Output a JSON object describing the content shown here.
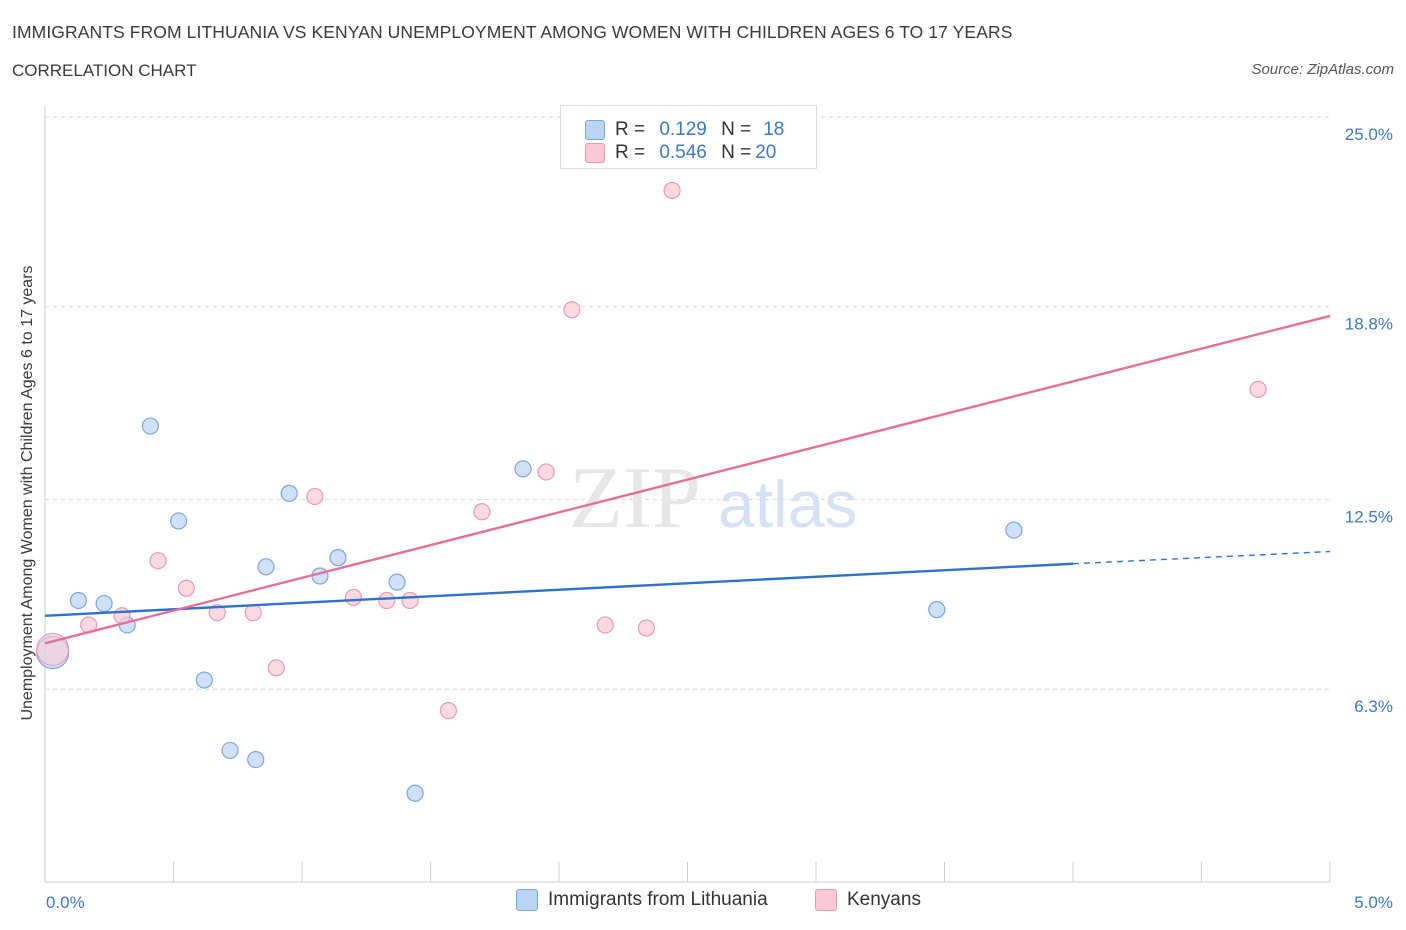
{
  "header": {
    "title": "IMMIGRANTS FROM LITHUANIA VS KENYAN UNEMPLOYMENT AMONG WOMEN WITH CHILDREN AGES 6 TO 17 YEARS",
    "subtitle": "CORRELATION CHART",
    "source": "Source: ZipAtlas.com"
  },
  "legend_top": {
    "rows": [
      {
        "r_label": "R =",
        "r_value": "0.129",
        "n_label": "N =",
        "n_value": "18"
      },
      {
        "r_label": "R =",
        "r_value": "0.546",
        "n_label": "N =",
        "n_value": "20"
      }
    ]
  },
  "legend_bottom": {
    "items": [
      "Immigrants from Lithuania",
      "Kenyans"
    ]
  },
  "colors": {
    "blue_fill": "#bcd4f4",
    "blue_stroke": "#7aa6e0",
    "blue_line": "#2f72c9",
    "pink_fill": "#f9c9d6",
    "pink_stroke": "#e99ab2",
    "pink_line": "#e46f98",
    "axis_text": "#3a78c8",
    "grid": "#dcdcdc"
  },
  "chart_data": {
    "type": "scatter",
    "title": "IMMIGRANTS FROM LITHUANIA VS KENYAN UNEMPLOYMENT AMONG WOMEN WITH CHILDREN AGES 6 TO 17 YEARS",
    "xlabel": "",
    "ylabel": "Unemployment Among Women with Children Ages 6 to 17 years",
    "xlim": [
      0,
      5
    ],
    "ylim": [
      0,
      25
    ],
    "x_tick_labels": [
      {
        "value": 0,
        "label": "0.0%"
      },
      {
        "value": 5,
        "label": "5.0%"
      }
    ],
    "y_tick_labels": [
      {
        "value": 6.3,
        "label": "6.3%"
      },
      {
        "value": 12.5,
        "label": "12.5%"
      },
      {
        "value": 18.8,
        "label": "18.8%"
      },
      {
        "value": 25.0,
        "label": "25.0%"
      }
    ],
    "watermark": {
      "a": "ZIP",
      "b": "atlas"
    },
    "series": [
      {
        "name": "Immigrants from Lithuania",
        "color": "blue",
        "trend": {
          "x0": 0,
          "y0": 8.7,
          "x1": 4.0,
          "y1": 10.4,
          "dash_to_x": 5.0,
          "dash_to_y": 10.8
        },
        "points": [
          {
            "x": 0.03,
            "y": 7.5,
            "big": true
          },
          {
            "x": 0.13,
            "y": 9.2
          },
          {
            "x": 0.23,
            "y": 9.1
          },
          {
            "x": 0.32,
            "y": 8.4
          },
          {
            "x": 0.41,
            "y": 14.9
          },
          {
            "x": 0.52,
            "y": 11.8
          },
          {
            "x": 0.62,
            "y": 6.6
          },
          {
            "x": 0.72,
            "y": 4.3
          },
          {
            "x": 0.82,
            "y": 4.0
          },
          {
            "x": 0.86,
            "y": 10.3
          },
          {
            "x": 0.95,
            "y": 12.7
          },
          {
            "x": 1.07,
            "y": 10.0
          },
          {
            "x": 1.14,
            "y": 10.6
          },
          {
            "x": 1.37,
            "y": 9.8
          },
          {
            "x": 1.44,
            "y": 2.9
          },
          {
            "x": 1.86,
            "y": 13.5
          },
          {
            "x": 3.47,
            "y": 8.9
          },
          {
            "x": 3.77,
            "y": 11.5
          }
        ]
      },
      {
        "name": "Kenyans",
        "color": "pink",
        "trend": {
          "x0": 0,
          "y0": 7.8,
          "x1": 5.0,
          "y1": 18.5
        },
        "points": [
          {
            "x": 0.03,
            "y": 7.6,
            "big": true
          },
          {
            "x": 0.17,
            "y": 8.4
          },
          {
            "x": 0.3,
            "y": 8.7
          },
          {
            "x": 0.44,
            "y": 10.5
          },
          {
            "x": 0.55,
            "y": 9.6
          },
          {
            "x": 0.67,
            "y": 8.8
          },
          {
            "x": 0.81,
            "y": 8.8
          },
          {
            "x": 0.9,
            "y": 7.0
          },
          {
            "x": 1.05,
            "y": 12.6
          },
          {
            "x": 1.2,
            "y": 9.3
          },
          {
            "x": 1.33,
            "y": 9.2
          },
          {
            "x": 1.42,
            "y": 9.2
          },
          {
            "x": 1.57,
            "y": 5.6
          },
          {
            "x": 1.7,
            "y": 12.1
          },
          {
            "x": 1.95,
            "y": 13.4
          },
          {
            "x": 2.05,
            "y": 18.7
          },
          {
            "x": 2.18,
            "y": 8.4
          },
          {
            "x": 2.34,
            "y": 8.3
          },
          {
            "x": 2.44,
            "y": 22.6
          },
          {
            "x": 4.72,
            "y": 16.1
          }
        ]
      }
    ]
  }
}
